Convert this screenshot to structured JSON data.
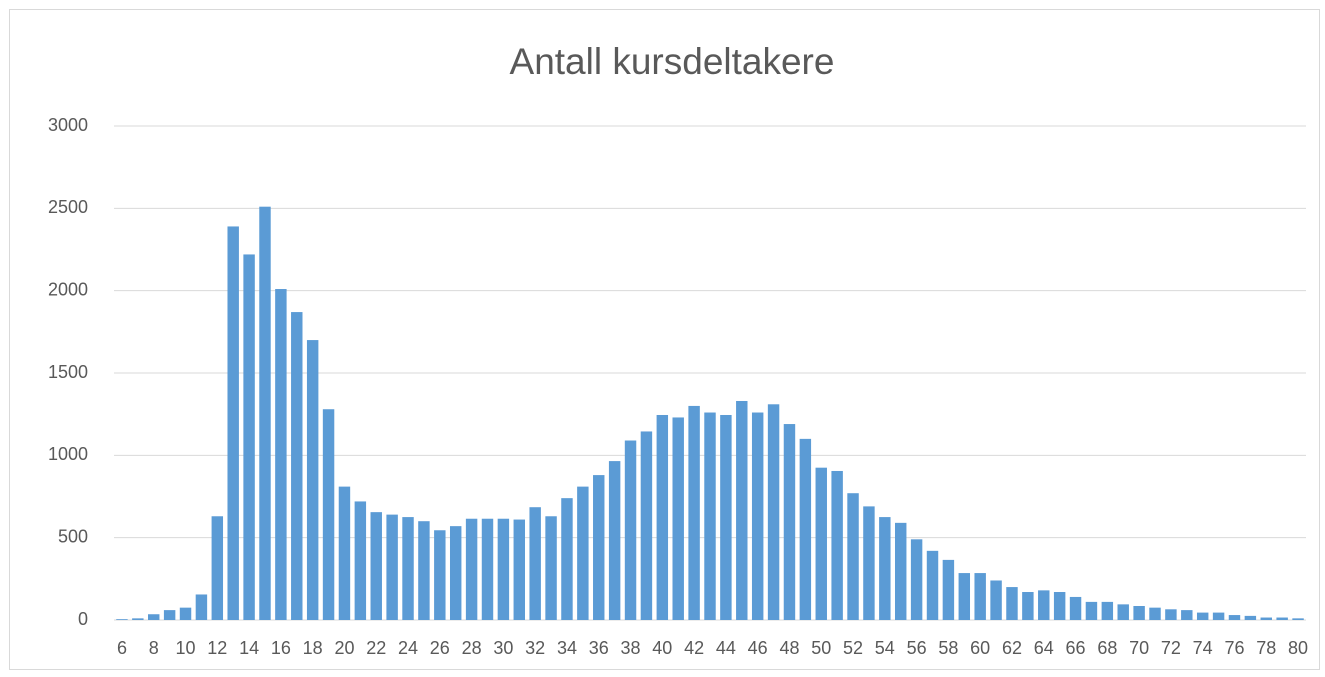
{
  "chart_data": {
    "type": "bar",
    "title": "Antall kursdeltakere",
    "categories": [
      6,
      null,
      8,
      null,
      10,
      null,
      12,
      null,
      14,
      null,
      16,
      null,
      18,
      null,
      20,
      null,
      22,
      null,
      24,
      null,
      26,
      null,
      28,
      null,
      30,
      null,
      32,
      null,
      34,
      null,
      36,
      null,
      38,
      null,
      40,
      null,
      42,
      null,
      44,
      null,
      46,
      null,
      48,
      null,
      50,
      null,
      52,
      null,
      54,
      null,
      56,
      null,
      58,
      null,
      60,
      null,
      62,
      null,
      64,
      null,
      66,
      null,
      68,
      null,
      70,
      null,
      72,
      null,
      74,
      null,
      76,
      null,
      78,
      null,
      80
    ],
    "values": [
      5,
      10,
      35,
      60,
      75,
      155,
      630,
      2390,
      2220,
      2510,
      2010,
      1870,
      1700,
      1280,
      810,
      720,
      655,
      640,
      625,
      600,
      545,
      570,
      615,
      615,
      615,
      610,
      685,
      630,
      740,
      810,
      880,
      965,
      1090,
      1145,
      1245,
      1230,
      1300,
      1260,
      1245,
      1330,
      1260,
      1310,
      1190,
      1100,
      925,
      905,
      770,
      690,
      625,
      590,
      490,
      420,
      365,
      285,
      285,
      240,
      200,
      170,
      180,
      170,
      140,
      110,
      110,
      95,
      85,
      75,
      65,
      60,
      45,
      45,
      30,
      25,
      15,
      15,
      10
    ],
    "color": "#5b9bd5",
    "ylim": [
      0,
      3000
    ],
    "yticks": [
      0,
      500,
      1000,
      1500,
      2000,
      2500,
      3000
    ],
    "grid": true
  }
}
